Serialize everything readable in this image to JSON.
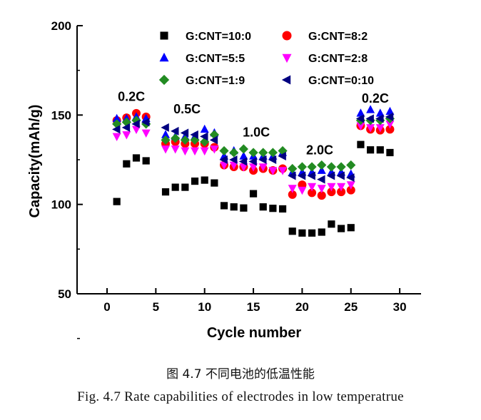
{
  "chart_data": {
    "type": "scatter",
    "xlabel": "Cycle number",
    "ylabel": "Capacity(mAh/g)",
    "xlim": [
      -2,
      32
    ],
    "ylim": [
      50,
      200
    ],
    "xticks": [
      0,
      5,
      10,
      15,
      20,
      25,
      30
    ],
    "yticks": [
      50,
      100,
      150,
      200
    ],
    "legend_position": "top",
    "annotations": [
      {
        "text": "0.2C",
        "x": 2.5,
        "y": 158
      },
      {
        "text": "0.5C",
        "x": 8.2,
        "y": 151
      },
      {
        "text": "1.0C",
        "x": 15.3,
        "y": 138
      },
      {
        "text": "2.0C",
        "x": 21.8,
        "y": 128
      },
      {
        "text": "0.2C",
        "x": 27.5,
        "y": 157
      }
    ],
    "x": [
      1,
      2,
      3,
      4,
      6,
      7,
      8,
      9,
      10,
      11,
      12,
      13,
      14,
      15,
      16,
      17,
      18,
      19,
      20,
      21,
      22,
      23,
      24,
      25,
      26,
      27,
      28,
      29
    ],
    "series": [
      {
        "name": "G:CNT=10:0",
        "marker": "square",
        "color": "#000000",
        "values": [
          101.6,
          122.7,
          126,
          124.4,
          107,
          109.6,
          109.6,
          113,
          113.6,
          112,
          99.3,
          98.6,
          98,
          106,
          98.6,
          97.8,
          97.5,
          85,
          84,
          84,
          84.5,
          89,
          86.5,
          87,
          133.5,
          130.5,
          130.5,
          129
        ]
      },
      {
        "name": "G:CNT=8:2",
        "marker": "circle",
        "color": "#ff0000",
        "values": [
          147,
          148.5,
          151,
          149,
          134,
          135,
          134,
          134,
          134,
          132,
          122,
          121,
          121,
          119,
          120,
          119,
          120,
          105.5,
          111,
          106.5,
          105,
          107,
          107,
          108,
          144,
          142,
          141.5,
          142
        ]
      },
      {
        "name": "G:CNT=5:5",
        "marker": "triangle-up",
        "color": "#0000ff",
        "values": [
          148,
          148,
          149,
          148,
          139,
          138,
          138,
          138,
          142,
          140,
          127,
          130,
          127,
          127,
          127,
          127,
          129,
          118,
          118,
          118,
          119,
          118,
          118,
          117,
          151,
          153,
          151,
          152
        ]
      },
      {
        "name": "G:CNT=2:8",
        "marker": "triangle-down",
        "color": "#ff00ff",
        "values": [
          138,
          139,
          142,
          140,
          131,
          131,
          130,
          130,
          130,
          131,
          122,
          122,
          121,
          121,
          121,
          119,
          119,
          109,
          108,
          110,
          109,
          110,
          110,
          111,
          144,
          143,
          143,
          145
        ]
      },
      {
        "name": "G:CNT=1:9",
        "marker": "diamond",
        "color": "#228b22",
        "values": [
          145,
          146,
          147,
          145,
          136,
          137,
          136,
          136,
          135,
          139,
          130,
          129,
          131,
          129,
          129,
          129,
          130,
          120,
          121,
          121,
          122,
          121,
          121,
          122,
          147,
          147,
          147,
          148
        ]
      },
      {
        "name": "G:CNT=0:10",
        "marker": "triangle-left",
        "color": "#000080",
        "values": [
          142,
          143,
          145,
          146,
          143,
          141,
          140,
          139,
          138,
          136,
          125,
          125,
          124,
          124,
          125,
          125,
          127,
          116,
          116,
          116,
          114,
          116,
          116,
          115,
          148,
          148,
          148,
          149
        ]
      }
    ]
  },
  "caption": {
    "chinese": "图 4.7  不同电池的低温性能",
    "english": "Fig. 4.7 Rate capabilities of electrodes in low temperatrue"
  }
}
